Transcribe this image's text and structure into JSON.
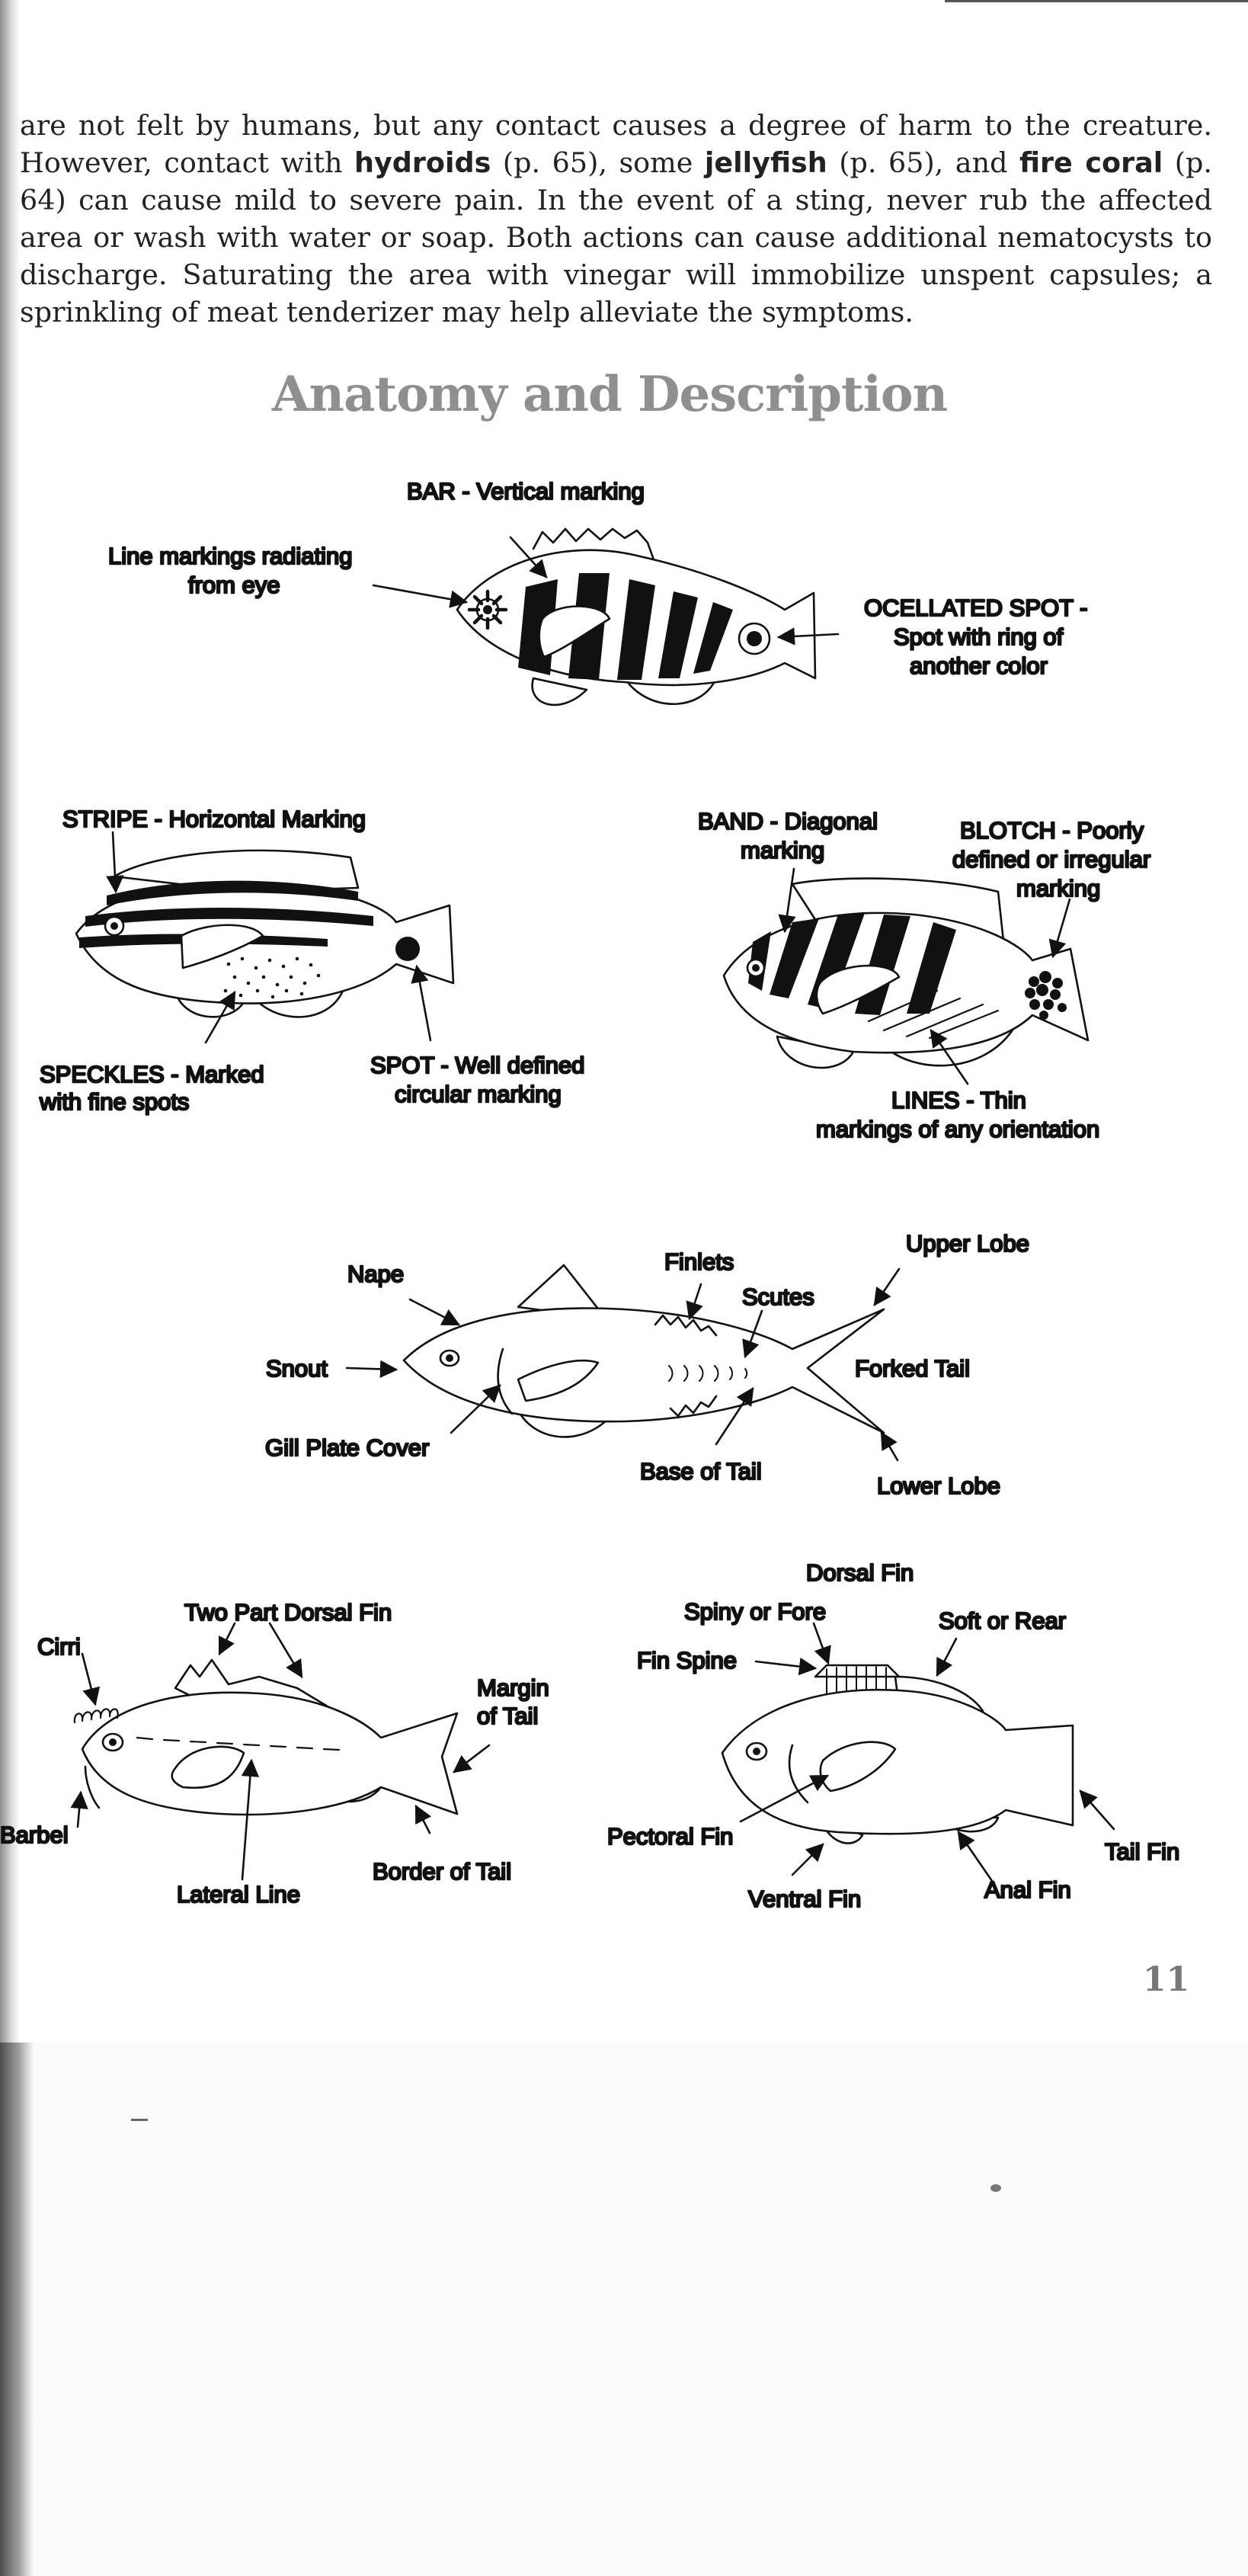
{
  "intro": {
    "s1": "are not felt by humans, but any contact causes a degree of harm to the creature. However, contact with ",
    "hydroids": "hydroids",
    "s2": " (p. 65), some ",
    "jellyfish": "jellyfish",
    "s3": " (p. 65), and ",
    "fire_coral": "fire coral",
    "s4": " (p. 64) can cause mild to severe pain. In the event of a sting, never rub the affected area or wash with water or soap. Both actions can cause additional nematocysts to discharge. Saturating the area with vinegar will immobilize unspent capsules; a sprinkling of meat tenderizer may help alleviate the symptoms."
  },
  "title": "Anatomy and Description",
  "fig1": {
    "bar_label": "BAR - Vertical marking",
    "radiating_1": "Line markings radiating",
    "radiating_2": "from eye",
    "ocellated_1": "OCELLATED SPOT -",
    "ocellated_2": "Spot with ring of",
    "ocellated_3": "another color"
  },
  "fig2": {
    "stripe": "STRIPE - Horizontal Marking",
    "speckles_1": "SPECKLES - Marked",
    "speckles_2": "with fine spots",
    "spot_1": "SPOT - Well defined",
    "spot_2": "circular marking"
  },
  "fig3": {
    "band_1": "BAND - Diagonal",
    "band_2": "marking",
    "blotch_1": "BLOTCH - Poorly",
    "blotch_2": "defined or irregular",
    "blotch_3": "marking",
    "lines_1": "LINES - Thin",
    "lines_2": "markings of any orientation"
  },
  "fig4": {
    "nape": "Nape",
    "finlets": "Finlets",
    "upper_lobe": "Upper Lobe",
    "scutes": "Scutes",
    "snout": "Snout",
    "forked_tail": "Forked Tail",
    "gill_plate": "Gill Plate Cover",
    "base_of_tail": "Base of Tail",
    "lower_lobe": "Lower Lobe"
  },
  "fig5": {
    "two_part_dorsal": "Two Part Dorsal Fin",
    "cirri": "Cirri",
    "margin_1": "Margin",
    "margin_2": "of Tail",
    "barbel": "Barbel",
    "border_of_tail": "Border of Tail",
    "lateral_line": "Lateral Line"
  },
  "fig6": {
    "dorsal_fin": "Dorsal Fin",
    "spiny": "Spiny or Fore",
    "soft": "Soft or Rear",
    "fin_spine": "Fin Spine",
    "pectoral": "Pectoral Fin",
    "tail_fin": "Tail Fin",
    "anal_fin": "Anal Fin",
    "ventral_fin": "Ventral Fin"
  },
  "page_number": "11"
}
